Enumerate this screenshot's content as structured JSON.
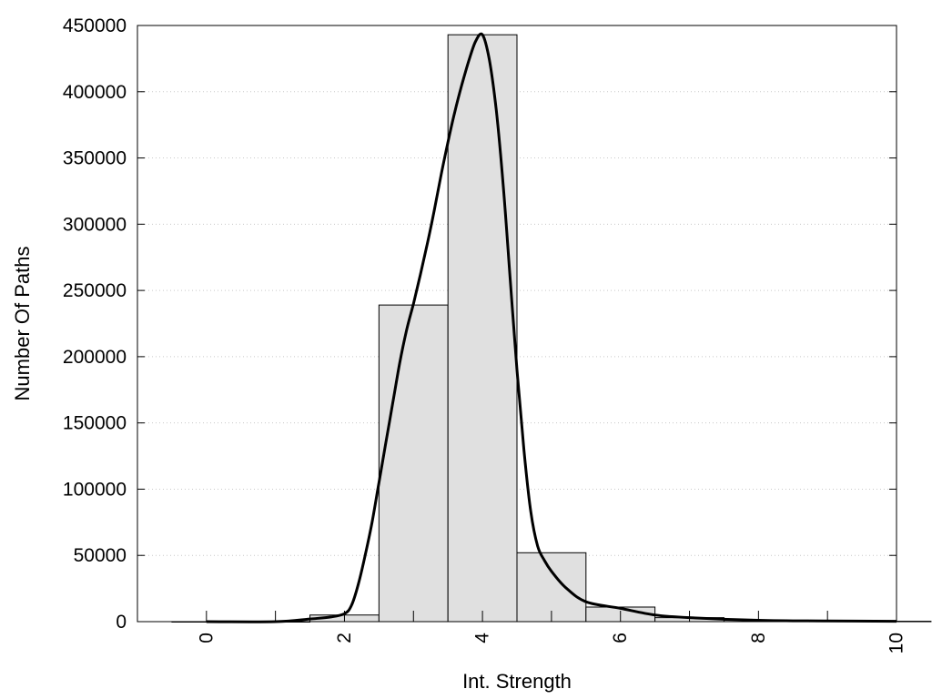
{
  "chart_data": {
    "type": "bar",
    "title": "",
    "xlabel": "Int. Strength",
    "ylabel": "Number Of Paths",
    "xlim": [
      -1,
      10
    ],
    "ylim": [
      0,
      450000
    ],
    "x_ticks": [
      0,
      2,
      4,
      6,
      8,
      10
    ],
    "y_ticks": [
      0,
      50000,
      100000,
      150000,
      200000,
      250000,
      300000,
      350000,
      400000,
      450000
    ],
    "grid": "horizontal-dotted",
    "bar_width": 1,
    "bars": [
      {
        "x": 0,
        "value": 0
      },
      {
        "x": 1,
        "value": 0
      },
      {
        "x": 2,
        "value": 5000
      },
      {
        "x": 3,
        "value": 239000
      },
      {
        "x": 4,
        "value": 443000
      },
      {
        "x": 5,
        "value": 52000
      },
      {
        "x": 6,
        "value": 11000
      },
      {
        "x": 7,
        "value": 3000
      },
      {
        "x": 8,
        "value": 1000
      },
      {
        "x": 9,
        "value": 500
      },
      {
        "x": 10,
        "value": 300
      }
    ],
    "curve": [
      [
        0,
        0
      ],
      [
        1,
        0
      ],
      [
        1.5,
        2000
      ],
      [
        1.8,
        3500
      ],
      [
        2.0,
        6000
      ],
      [
        2.1,
        12000
      ],
      [
        2.2,
        28000
      ],
      [
        2.3,
        50000
      ],
      [
        2.4,
        75000
      ],
      [
        2.5,
        105000
      ],
      [
        2.6,
        135000
      ],
      [
        2.7,
        165000
      ],
      [
        2.8,
        195000
      ],
      [
        2.9,
        220000
      ],
      [
        3.0,
        240000
      ],
      [
        3.1,
        262000
      ],
      [
        3.2,
        285000
      ],
      [
        3.3,
        310000
      ],
      [
        3.4,
        337000
      ],
      [
        3.5,
        362000
      ],
      [
        3.6,
        385000
      ],
      [
        3.7,
        405000
      ],
      [
        3.8,
        423000
      ],
      [
        3.9,
        438000
      ],
      [
        4.0,
        443000
      ],
      [
        4.1,
        424000
      ],
      [
        4.2,
        386000
      ],
      [
        4.3,
        330000
      ],
      [
        4.4,
        260000
      ],
      [
        4.5,
        190000
      ],
      [
        4.6,
        130000
      ],
      [
        4.7,
        83000
      ],
      [
        4.8,
        57000
      ],
      [
        4.9,
        46000
      ],
      [
        5.0,
        38000
      ],
      [
        5.2,
        26000
      ],
      [
        5.5,
        15000
      ],
      [
        6.0,
        10000
      ],
      [
        6.5,
        5000
      ],
      [
        7.0,
        3000
      ],
      [
        8.0,
        1000
      ],
      [
        9.0,
        500
      ],
      [
        10.0,
        300
      ]
    ]
  }
}
